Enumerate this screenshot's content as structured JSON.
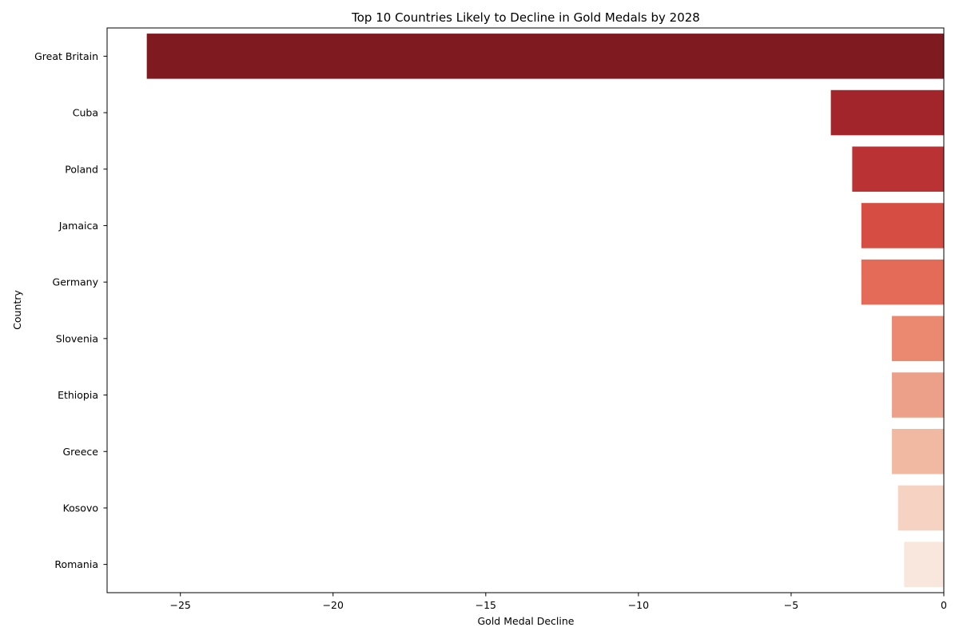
{
  "chart_data": {
    "type": "bar",
    "orientation": "horizontal",
    "title": "Top 10 Countries Likely to Decline in Gold Medals by 2028",
    "xlabel": "Gold Medal Decline",
    "ylabel": "Country",
    "categories": [
      "Great Britain",
      "Cuba",
      "Poland",
      "Jamaica",
      "Germany",
      "Slovenia",
      "Ethiopia",
      "Greece",
      "Kosovo",
      "Romania"
    ],
    "values": [
      -26.1,
      -3.7,
      -3.0,
      -2.7,
      -2.7,
      -1.7,
      -1.7,
      -1.7,
      -1.5,
      -1.3
    ],
    "colors": [
      "#7f1a21",
      "#a1252b",
      "#bb3234",
      "#d64d43",
      "#e46b57",
      "#ea8870",
      "#eda089",
      "#f1b9a2",
      "#f5d2c2",
      "#f9e6dc"
    ],
    "xlim": [
      -27.4,
      0
    ],
    "xticks": [
      -25,
      -20,
      -15,
      -10,
      -5,
      0
    ],
    "xtick_labels": [
      "−25",
      "−20",
      "−15",
      "−10",
      "−5",
      "0"
    ],
    "grid": false,
    "legend": "none"
  }
}
